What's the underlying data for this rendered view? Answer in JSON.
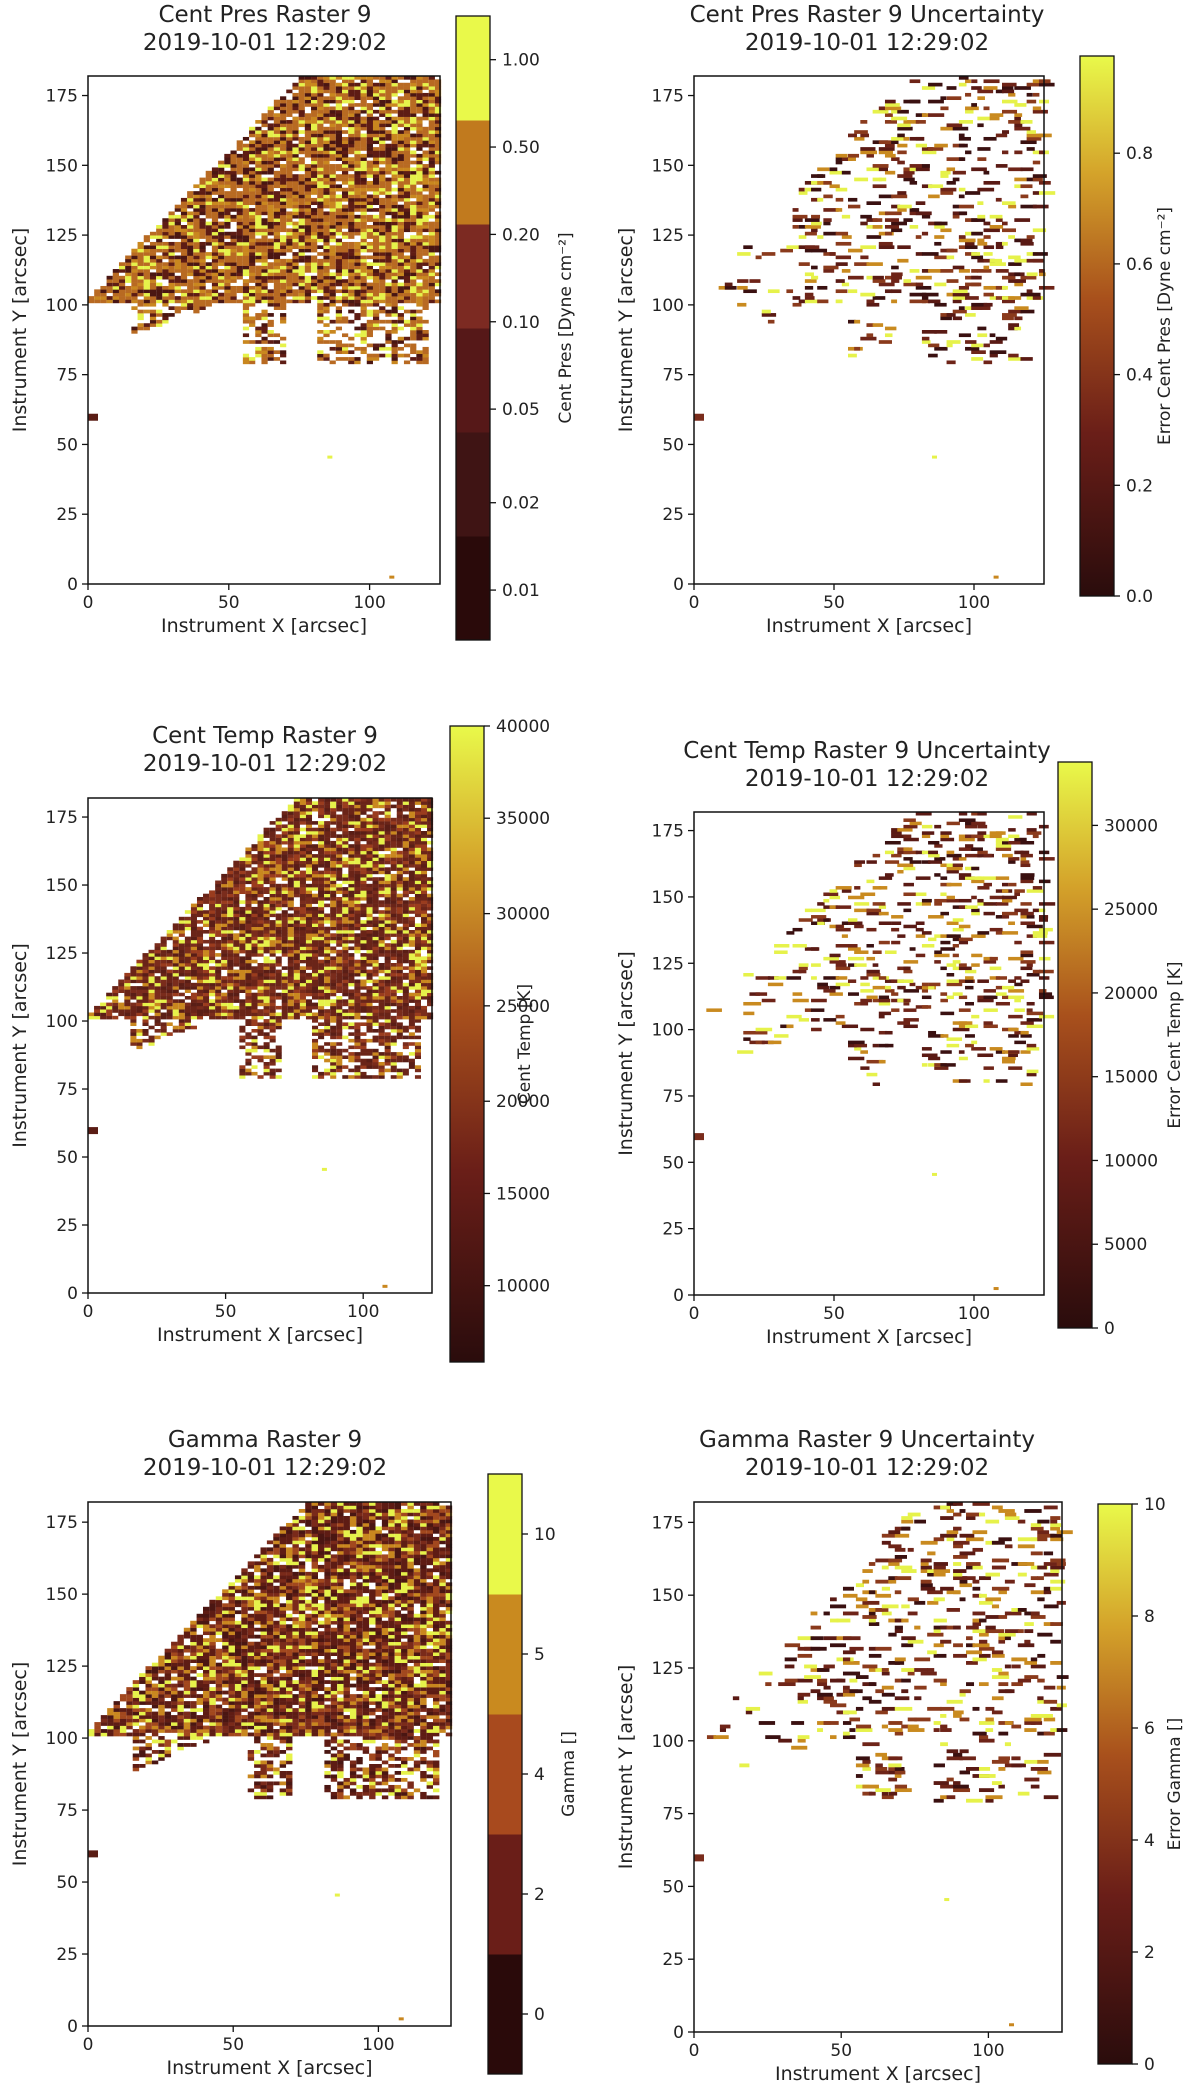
{
  "figure": {
    "panels": [
      {
        "title": "Cent Pres Raster 9",
        "subtitle": "2019-10-01 12:29:02",
        "xlabel": "Instrument X [arcsec]",
        "ylabel": "Instrument Y [arcsec]",
        "colorbar_label": "Cent Pres [Dyne cm⁻²]",
        "colorbar_type": "discrete",
        "colorbar_ticks": [
          "0.01",
          "0.02",
          "0.05",
          "0.10",
          "0.20",
          "0.50",
          "1.00"
        ],
        "colorbar_colors": [
          "#2a0a0a",
          "#3f1414",
          "#561818",
          "#7c2a22",
          "#c17a1e",
          "#e9f94a"
        ],
        "colorbar_tick_fractions": [
          0.08,
          0.22,
          0.37,
          0.51,
          0.65,
          0.79,
          0.93
        ],
        "density": "dense",
        "dominant_color": "#b86a22"
      },
      {
        "title": "Cent Pres Raster 9 Uncertainty",
        "subtitle": "2019-10-01 12:29:02",
        "xlabel": "Instrument X [arcsec]",
        "ylabel": "Instrument Y [arcsec]",
        "colorbar_label": "Error Cent Pres [Dyne cm⁻²]",
        "colorbar_type": "continuous",
        "colorbar_ticks": [
          "0.0",
          "0.2",
          "0.4",
          "0.6",
          "0.8"
        ],
        "colorbar_tick_fractions": [
          0.0,
          0.205,
          0.41,
          0.615,
          0.82
        ],
        "density": "sparse",
        "dominant_color": "#5a1a14"
      },
      {
        "title": "Cent Temp Raster 9",
        "subtitle": "2019-10-01 12:29:02",
        "xlabel": "Instrument X [arcsec]",
        "ylabel": "Instrument Y [arcsec]",
        "colorbar_label": "Cent Temp [K]",
        "colorbar_type": "continuous",
        "colorbar_ticks": [
          "10000",
          "15000",
          "20000",
          "25000",
          "30000",
          "35000",
          "40000"
        ],
        "colorbar_tick_fractions": [
          0.12,
          0.265,
          0.41,
          0.56,
          0.705,
          0.855,
          1.0
        ],
        "density": "dense",
        "dominant_color": "#6a2418"
      },
      {
        "title": "Cent Temp Raster 9 Uncertainty",
        "subtitle": "2019-10-01 12:29:02",
        "xlabel": "Instrument X [arcsec]",
        "ylabel": "Instrument Y [arcsec]",
        "colorbar_label": "Error Cent Temp [K]",
        "colorbar_type": "continuous",
        "colorbar_ticks": [
          "0",
          "5000",
          "10000",
          "15000",
          "20000",
          "25000",
          "30000"
        ],
        "colorbar_tick_fractions": [
          0.0,
          0.148,
          0.296,
          0.444,
          0.592,
          0.74,
          0.888
        ],
        "density": "sparse",
        "dominant_color": "#5a1a14"
      },
      {
        "title": "Gamma Raster 9",
        "subtitle": "2019-10-01 12:29:02",
        "xlabel": "Instrument X [arcsec]",
        "ylabel": "Instrument Y [arcsec]",
        "colorbar_label": "Gamma []",
        "colorbar_type": "discrete",
        "colorbar_ticks": [
          "0",
          "2",
          "4",
          "5",
          "10"
        ],
        "colorbar_colors": [
          "#2a0a0a",
          "#6a1e18",
          "#a84a1e",
          "#c98a1f",
          "#e9f94a"
        ],
        "colorbar_tick_fractions": [
          0.1,
          0.3,
          0.5,
          0.7,
          0.9
        ],
        "density": "dense",
        "dominant_color": "#5e1c14"
      },
      {
        "title": "Gamma Raster 9 Uncertainty",
        "subtitle": "2019-10-01 12:29:02",
        "xlabel": "Instrument X [arcsec]",
        "ylabel": "Instrument Y [arcsec]",
        "colorbar_label": "Error Gamma []",
        "colorbar_type": "continuous",
        "colorbar_ticks": [
          "0",
          "2",
          "4",
          "6",
          "8",
          "10"
        ],
        "colorbar_tick_fractions": [
          0.0,
          0.2,
          0.4,
          0.6,
          0.8,
          1.0
        ],
        "density": "sparse",
        "dominant_color": "#5a1a14"
      }
    ],
    "x_ticks": [
      "0",
      "50",
      "100"
    ],
    "y_ticks": [
      "0",
      "25",
      "50",
      "75",
      "100",
      "125",
      "150",
      "175"
    ]
  },
  "chart_data": {
    "type": "heatmap",
    "shared_axes": {
      "xlabel": "Instrument X [arcsec]",
      "ylabel": "Instrument Y [arcsec]",
      "xlim": [
        0,
        125
      ],
      "ylim": [
        0,
        182
      ],
      "x_ticks": [
        0,
        50,
        100
      ],
      "y_ticks": [
        0,
        25,
        50,
        75,
        100,
        125,
        150,
        175
      ]
    },
    "panels": [
      {
        "title": "Cent Pres Raster 9",
        "subtitle": "2019-10-01 12:29:02",
        "colorbar_label": "Cent Pres [Dyne cm⁻²]",
        "colorbar_ticks": [
          0.01,
          0.02,
          0.05,
          0.1,
          0.2,
          0.5,
          1.0
        ],
        "colormap": "discrete-afmhot"
      },
      {
        "title": "Cent Pres Raster 9 Uncertainty",
        "subtitle": "2019-10-01 12:29:02",
        "colorbar_label": "Error Cent Pres [Dyne cm⁻²]",
        "colorbar_range": [
          0.0,
          0.98
        ],
        "colorbar_ticks": [
          0.0,
          0.2,
          0.4,
          0.6,
          0.8
        ],
        "colormap": "afmhot"
      },
      {
        "title": "Cent Temp Raster 9",
        "subtitle": "2019-10-01 12:29:02",
        "colorbar_label": "Cent Temp [K]",
        "colorbar_range": [
          6000,
          40000
        ],
        "colorbar_ticks": [
          10000,
          15000,
          20000,
          25000,
          30000,
          35000,
          40000
        ],
        "colormap": "afmhot"
      },
      {
        "title": "Cent Temp Raster 9 Uncertainty",
        "subtitle": "2019-10-01 12:29:02",
        "colorbar_label": "Error Cent Temp [K]",
        "colorbar_range": [
          0,
          33800
        ],
        "colorbar_ticks": [
          0,
          5000,
          10000,
          15000,
          20000,
          25000,
          30000
        ],
        "colormap": "afmhot"
      },
      {
        "title": "Gamma Raster 9",
        "subtitle": "2019-10-01 12:29:02",
        "colorbar_label": "Gamma []",
        "colorbar_ticks": [
          0,
          2,
          4,
          5,
          10
        ],
        "colormap": "discrete-afmhot"
      },
      {
        "title": "Gamma Raster 9 Uncertainty",
        "subtitle": "2019-10-01 12:29:02",
        "colorbar_label": "Error Gamma []",
        "colorbar_range": [
          0,
          10
        ],
        "colorbar_ticks": [
          0,
          2,
          4,
          6,
          8,
          10
        ],
        "colormap": "afmhot"
      }
    ]
  }
}
